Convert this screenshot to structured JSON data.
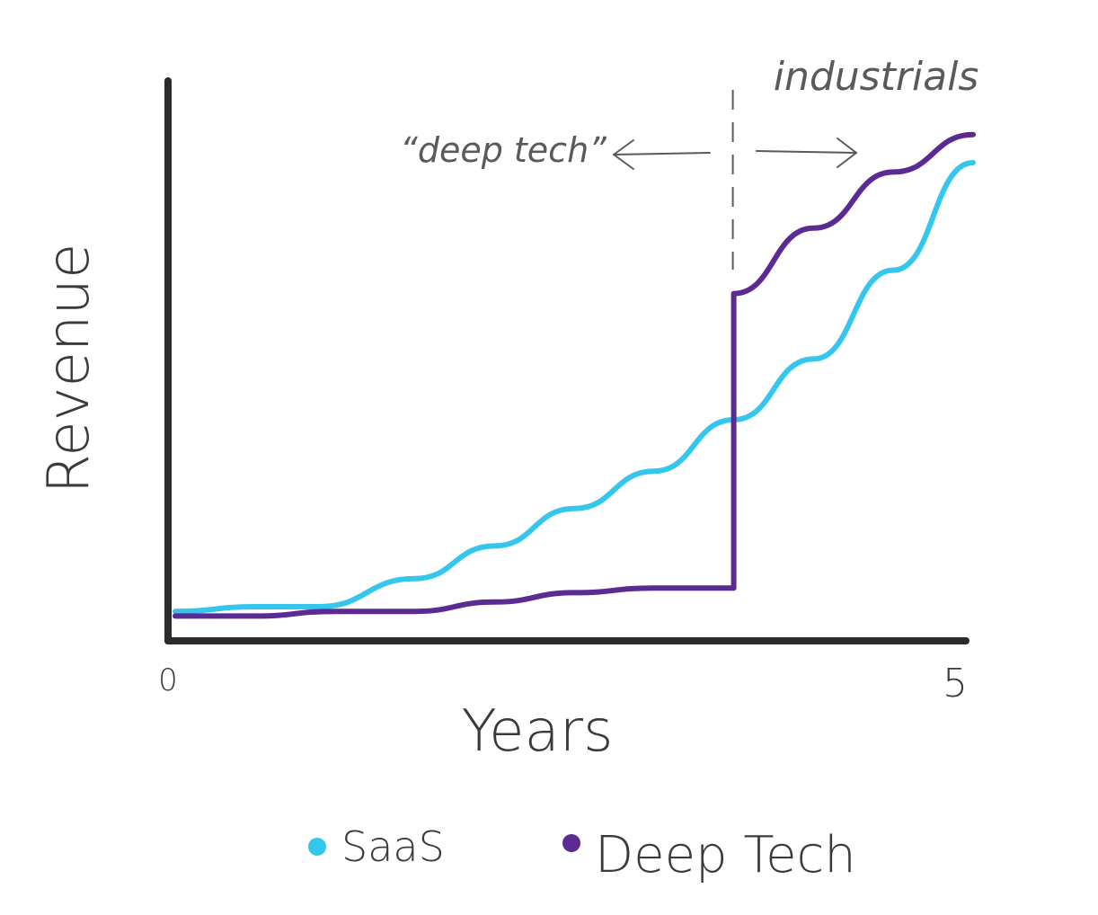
{
  "chart_data": {
    "type": "line",
    "xlabel": "Years",
    "ylabel": "Revenue",
    "xlim": [
      0,
      5
    ],
    "x_ticks": [
      "0",
      "5"
    ],
    "grid": false,
    "legend_position": "bottom-center",
    "series": [
      {
        "name": "SaaS",
        "color": "#35c6ee",
        "x": [
          0,
          0.5,
          0.9,
          1.5,
          2.0,
          2.5,
          3.0,
          3.5,
          4.0,
          4.5,
          5.0
        ],
        "y": [
          0.04,
          0.05,
          0.05,
          0.11,
          0.18,
          0.26,
          0.34,
          0.45,
          0.58,
          0.77,
          1.0
        ]
      },
      {
        "name": "Deep Tech",
        "color": "#5b2a93",
        "x": [
          0,
          0.5,
          1.0,
          1.5,
          2.0,
          2.5,
          3.0,
          3.5,
          3.5,
          4.0,
          4.5,
          5.0
        ],
        "y": [
          0.03,
          0.03,
          0.04,
          0.04,
          0.06,
          0.08,
          0.09,
          0.09,
          0.72,
          0.86,
          0.98,
          1.06
        ]
      }
    ],
    "annotations": {
      "divider_x": 3.5,
      "left_label": "“deep tech”",
      "right_label": "industrials"
    }
  }
}
